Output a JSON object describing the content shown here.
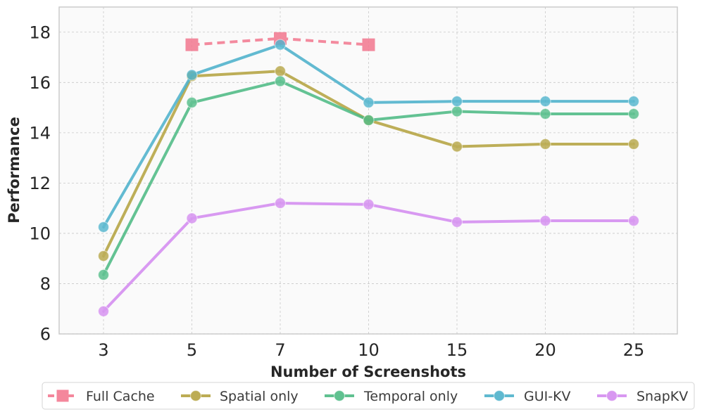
{
  "chart_data": {
    "type": "line",
    "title": "",
    "xlabel": "Number of Screenshots",
    "ylabel": "Performance",
    "categories": [
      "3",
      "5",
      "7",
      "10",
      "15",
      "20",
      "25"
    ],
    "ylim": [
      6,
      19
    ],
    "yticks": [
      6,
      8,
      10,
      12,
      14,
      16,
      18
    ],
    "grid": true,
    "legend_position": "bottom",
    "series": [
      {
        "name": "Full Cache",
        "color": "#f37b92",
        "marker": "square",
        "linestyle": "dashed",
        "values": [
          null,
          17.5,
          17.75,
          17.5,
          null,
          null,
          null
        ]
      },
      {
        "name": "Spatial only",
        "color": "#b5a442",
        "marker": "circle",
        "linestyle": "solid",
        "values": [
          9.1,
          16.25,
          16.45,
          14.5,
          13.45,
          13.55,
          13.55
        ]
      },
      {
        "name": "Temporal only",
        "color": "#4fbb85",
        "marker": "circle",
        "linestyle": "solid",
        "values": [
          8.35,
          15.2,
          16.05,
          14.5,
          14.85,
          14.75,
          14.75
        ]
      },
      {
        "name": "GUI-KV",
        "color": "#4eb2cc",
        "marker": "circle",
        "linestyle": "solid",
        "values": [
          10.25,
          16.3,
          17.5,
          15.2,
          15.25,
          15.25,
          15.25
        ]
      },
      {
        "name": "SnapKV",
        "color": "#d48cf0",
        "marker": "circle",
        "linestyle": "solid",
        "values": [
          6.9,
          10.6,
          11.2,
          11.15,
          10.45,
          10.5,
          10.5
        ]
      }
    ]
  }
}
